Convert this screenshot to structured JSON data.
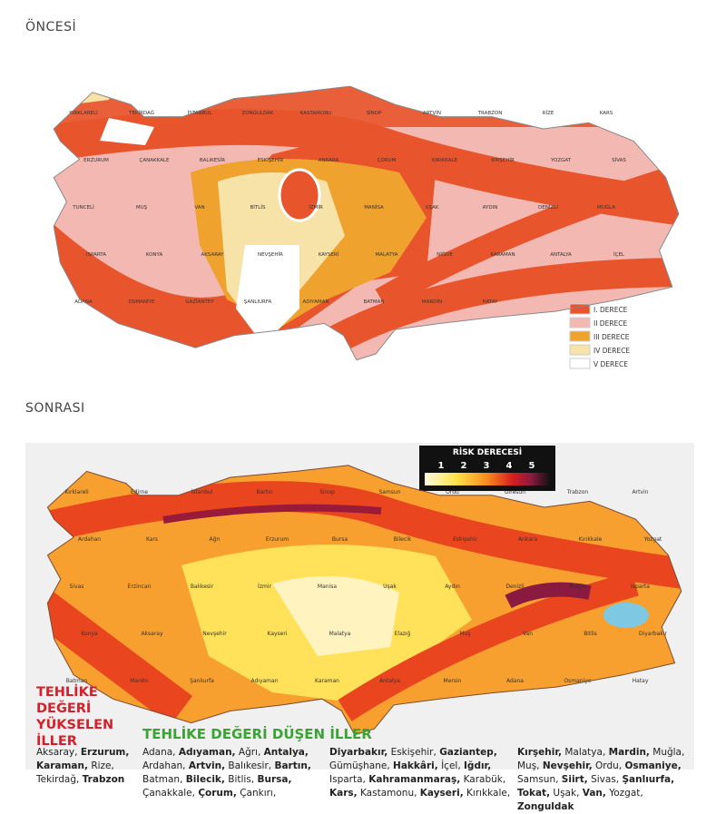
{
  "before": {
    "heading": "ÖNCESİ",
    "legend": [
      "I. DERECE",
      "II DERECE",
      "III DERECE",
      "IV DERECE",
      "V DERECE"
    ],
    "cities": [
      "KIRKLARELİ",
      "TEKİRDAĞ",
      "İSTANBUL",
      "ZONGULDAK",
      "KASTAMONU",
      "SİNOP",
      "ARTVİN",
      "TRABZON",
      "RİZE",
      "KARS",
      "ERZURUM",
      "ÇANAKKALE",
      "BALIKESİR",
      "ESKİŞEHİR",
      "ANKARA",
      "ÇORUM",
      "KIRIKKALE",
      "KIRŞEHİR",
      "YOZGAT",
      "SİVAS",
      "TUNCELİ",
      "MUŞ",
      "VAN",
      "BİTLİS",
      "İZMİR",
      "MANİSA",
      "UŞAK",
      "AYDIN",
      "DENİZLİ",
      "MUĞLA",
      "ISPARTA",
      "KONYA",
      "AKSARAY",
      "NEVŞEHİR",
      "KAYSERİ",
      "MALATYA",
      "NİĞDE",
      "KARAMAN",
      "ANTALYA",
      "İÇEL",
      "ADANA",
      "OSMANİYE",
      "GAZİANTEP",
      "ŞANLIURFA",
      "ADIYAMAN",
      "BATMAN",
      "MARDİN",
      "HATAY"
    ]
  },
  "after": {
    "heading": "SONRASI",
    "risk_title": "RİSK DERECESİ",
    "risk_levels": [
      "1",
      "2",
      "3",
      "4",
      "5"
    ],
    "cities": [
      "Kırklareli",
      "Edirne",
      "İstanbul",
      "Bartın",
      "Sinop",
      "Samsun",
      "Ordu",
      "Giresun",
      "Trabzon",
      "Artvin",
      "Ardahan",
      "Kars",
      "Ağrı",
      "Erzurum",
      "Bursa",
      "Bilecik",
      "Eskişehir",
      "Ankara",
      "Kırıkkale",
      "Yozgat",
      "Sivas",
      "Erzincan",
      "Balıkesir",
      "İzmir",
      "Manisa",
      "Uşak",
      "Aydın",
      "Denizli",
      "Muğla",
      "Isparta",
      "Konya",
      "Aksaray",
      "Nevşehir",
      "Kayseri",
      "Malatya",
      "Elazığ",
      "Muş",
      "Van",
      "Bitlis",
      "Diyarbakır",
      "Batman",
      "Mardin",
      "Şanlıurfa",
      "Adıyaman",
      "Karaman",
      "Antalya",
      "Mersin",
      "Adana",
      "Osmaniye",
      "Hatay"
    ],
    "increased_title": "TEHLİKE DEĞERİ YÜKSELEN İLLER",
    "increased": [
      {
        "text": "Aksaray,",
        "bold": false
      },
      {
        "text": "Erzurum,",
        "bold": true
      },
      {
        "text": "Karaman,",
        "bold": true
      },
      {
        "text": "Rize,",
        "bold": false
      },
      {
        "text": "Tekirdağ,",
        "bold": false
      },
      {
        "text": "Trabzon",
        "bold": true
      }
    ],
    "decreased_title": "TEHLİKE DEĞERİ DÜŞEN İLLER",
    "decreased": [
      [
        {
          "text": "Adana,",
          "bold": false
        },
        {
          "text": "Adıyaman,",
          "bold": true
        },
        {
          "text": "Ağrı,",
          "bold": false
        },
        {
          "text": "Antalya,",
          "bold": true
        },
        {
          "text": "Ardahan,",
          "bold": false
        },
        {
          "text": "Artvin,",
          "bold": true
        },
        {
          "text": "Balıkesir,",
          "bold": false
        },
        {
          "text": "Bartın,",
          "bold": true
        },
        {
          "text": "Batman,",
          "bold": false
        },
        {
          "text": "Bilecik,",
          "bold": true
        },
        {
          "text": "Bitlis,",
          "bold": false
        },
        {
          "text": "Bursa,",
          "bold": true
        },
        {
          "text": "Çanakkale,",
          "bold": false
        },
        {
          "text": "Çorum,",
          "bold": true
        },
        {
          "text": "Çankırı,",
          "bold": false
        }
      ],
      [
        {
          "text": "Diyarbakır,",
          "bold": true
        },
        {
          "text": "Eskişehir,",
          "bold": false
        },
        {
          "text": "Gaziantep,",
          "bold": true
        },
        {
          "text": "Gümüşhane,",
          "bold": false
        },
        {
          "text": "Hakkâri,",
          "bold": true
        },
        {
          "text": "İçel,",
          "bold": false
        },
        {
          "text": "Iğdır,",
          "bold": true
        },
        {
          "text": "Isparta,",
          "bold": false
        },
        {
          "text": "Kahramanmaraş,",
          "bold": true
        },
        {
          "text": "Karabük,",
          "bold": false
        },
        {
          "text": "Kars,",
          "bold": true
        },
        {
          "text": "Kastamonu,",
          "bold": false
        },
        {
          "text": "Kayseri,",
          "bold": true
        },
        {
          "text": "Kırıkkale,",
          "bold": false
        }
      ],
      [
        {
          "text": "Kırşehir,",
          "bold": true
        },
        {
          "text": "Malatya,",
          "bold": false
        },
        {
          "text": "Mardin,",
          "bold": true
        },
        {
          "text": "Muğla,",
          "bold": false
        },
        {
          "text": "Muş,",
          "bold": false
        },
        {
          "text": "Nevşehir,",
          "bold": true
        },
        {
          "text": "Ordu,",
          "bold": false
        },
        {
          "text": "Osmaniye,",
          "bold": true
        },
        {
          "text": "Samsun,",
          "bold": false
        },
        {
          "text": "Siirt,",
          "bold": true
        },
        {
          "text": "Sivas,",
          "bold": false
        },
        {
          "text": "Şanlıurfa,",
          "bold": true
        },
        {
          "text": "Tokat,",
          "bold": true
        },
        {
          "text": "Uşak,",
          "bold": false
        },
        {
          "text": "Van,",
          "bold": true
        },
        {
          "text": "Yozgat,",
          "bold": false
        },
        {
          "text": "Zonguldak",
          "bold": true
        }
      ]
    ]
  }
}
